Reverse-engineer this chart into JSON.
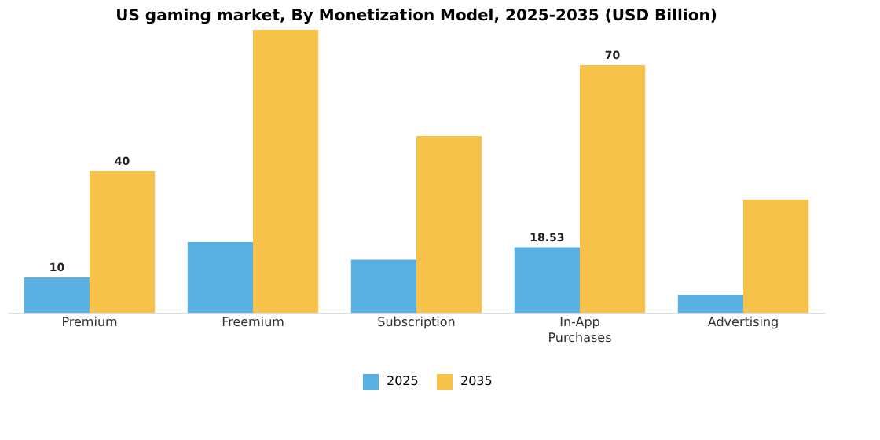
{
  "chart_data": {
    "type": "bar",
    "title": "US gaming market, By Monetization Model, 2025-2035 (USD Billion)",
    "categories": [
      "Premium",
      "Freemium",
      "Subscription",
      "In-App Purchases",
      "Advertising"
    ],
    "series": [
      {
        "name": "2025",
        "color": "#5ab0e3",
        "values": [
          10,
          20,
          15,
          18.53,
          5
        ],
        "value_labels": [
          "10",
          null,
          null,
          "18.53",
          null
        ]
      },
      {
        "name": "2035",
        "color": "#f7c24a",
        "values": [
          40,
          80,
          50,
          70,
          32
        ],
        "value_labels": [
          "40",
          null,
          null,
          "70",
          null
        ]
      }
    ],
    "tick_labels": "x",
    "grid": false,
    "legend": "bottom"
  }
}
